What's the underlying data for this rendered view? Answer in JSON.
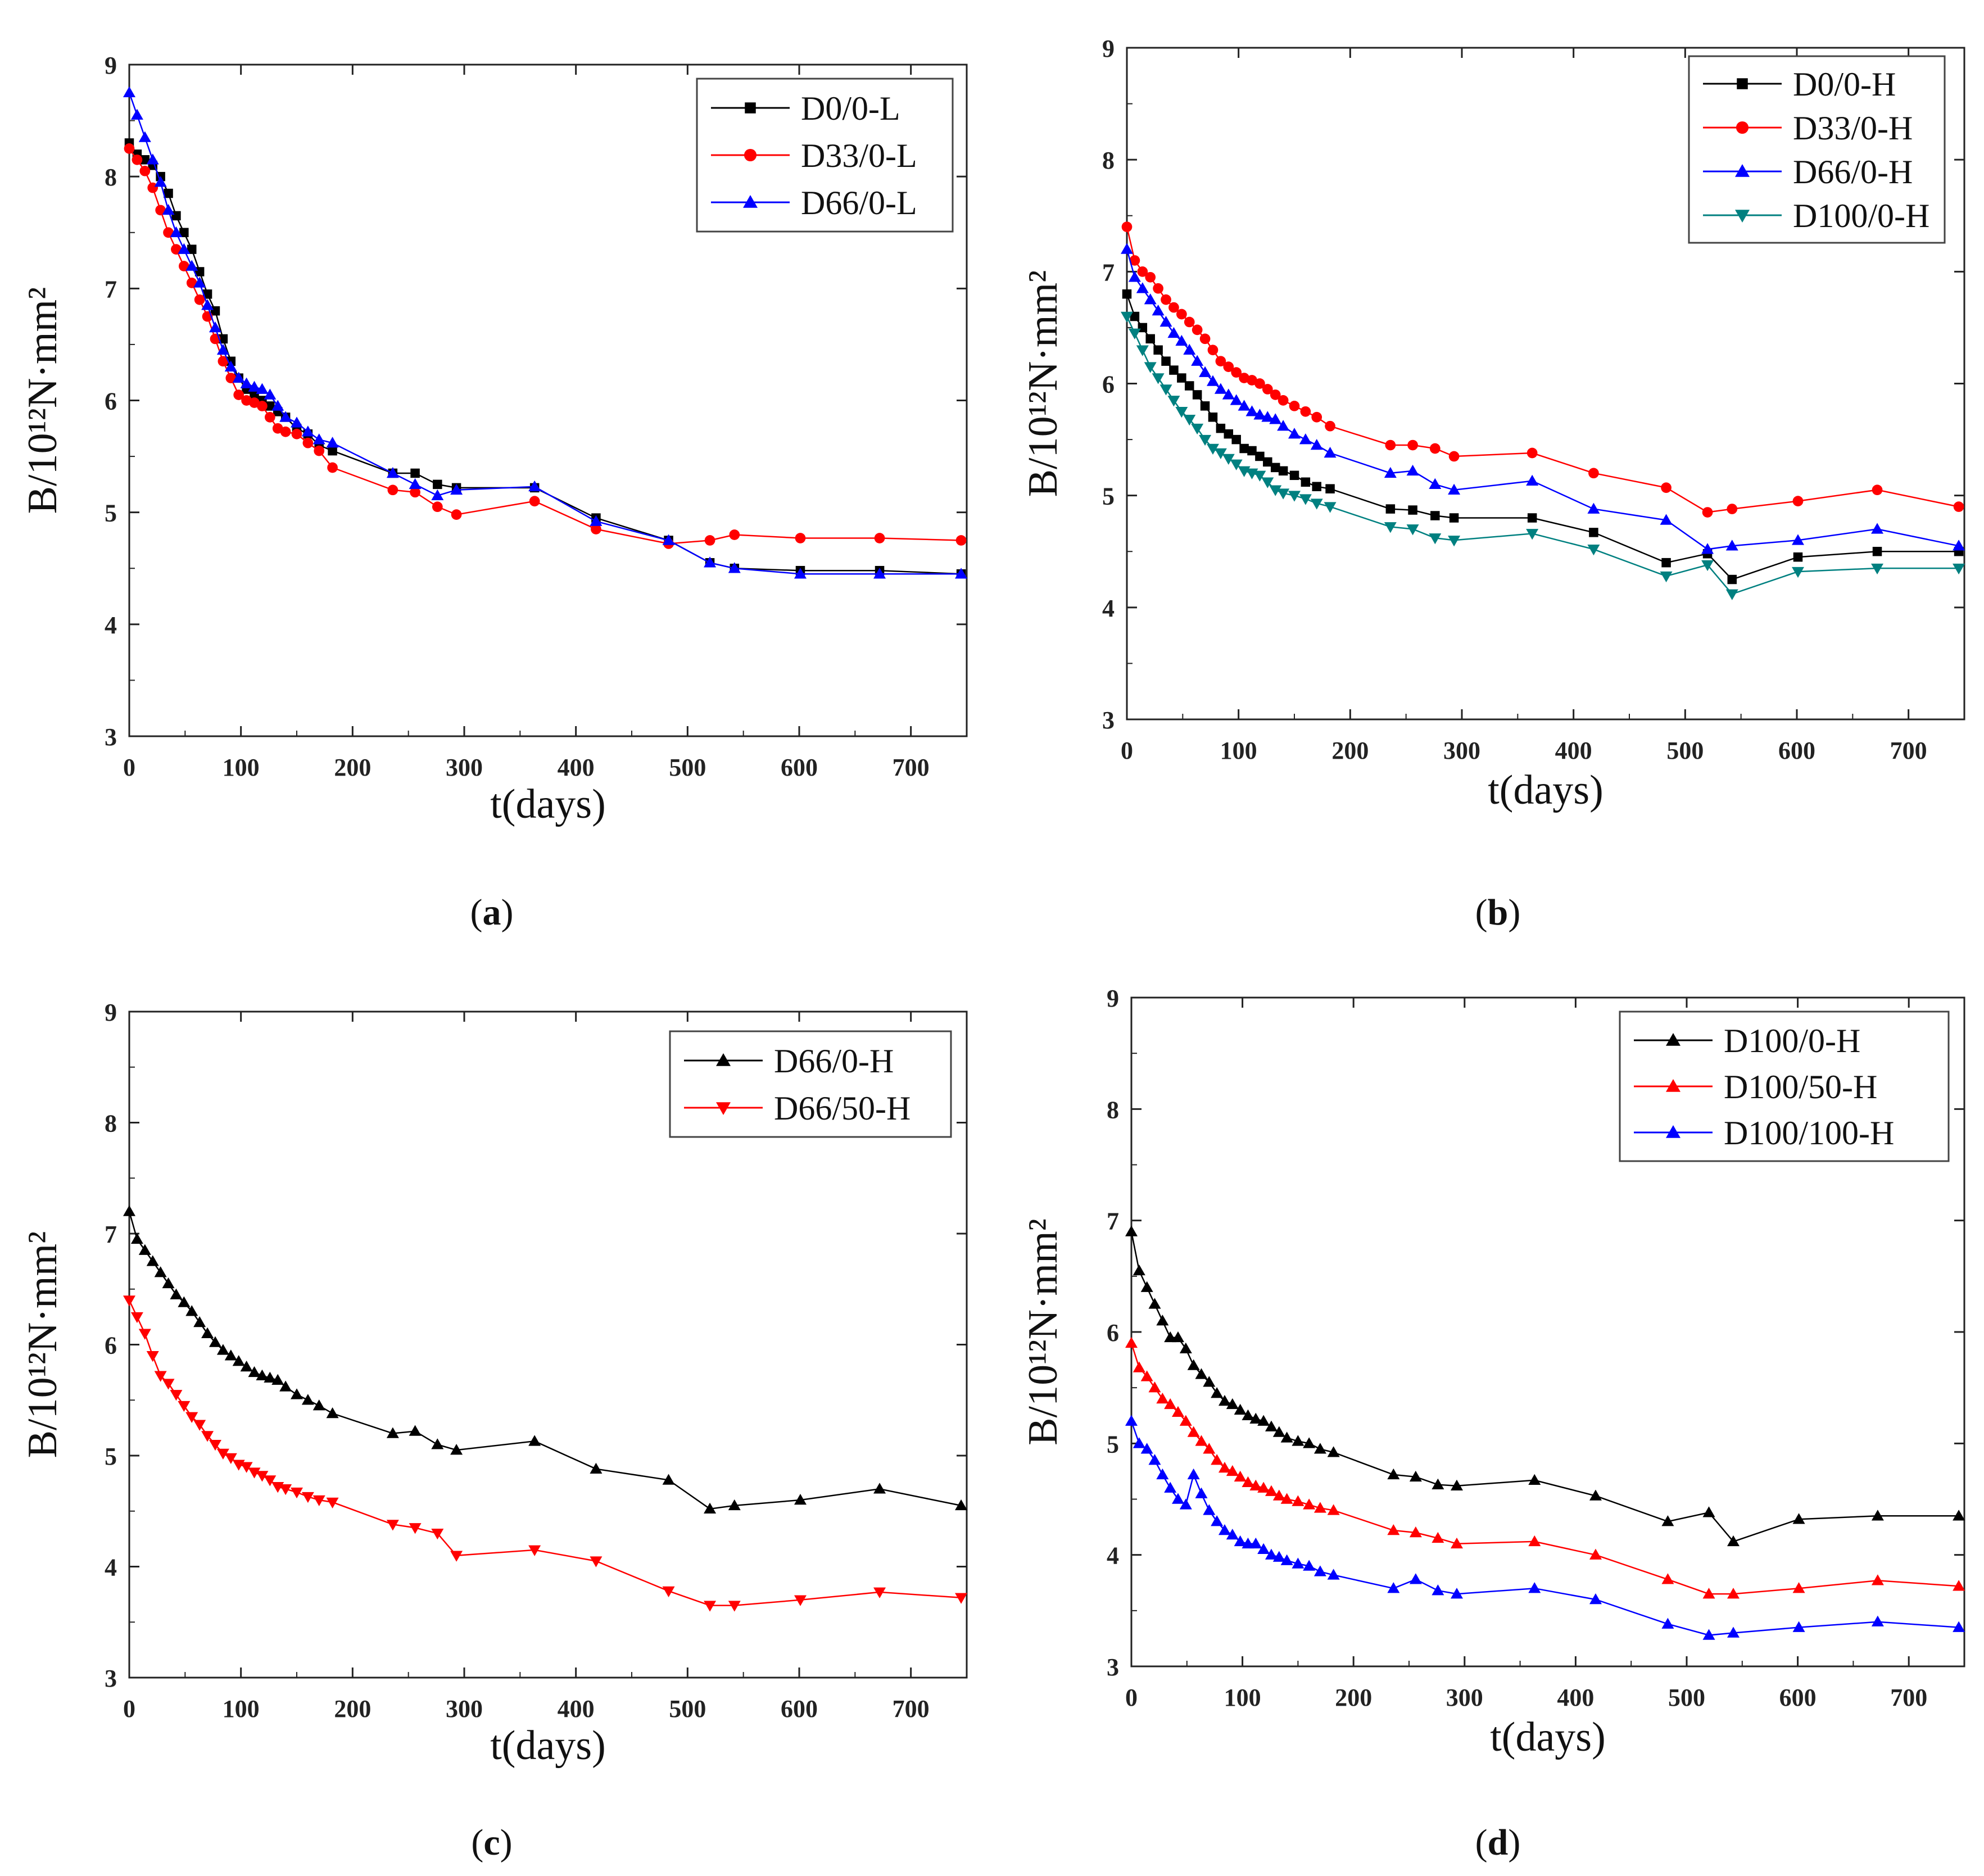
{
  "chart_data": [
    {
      "type": "line",
      "panel_label": "a",
      "xlabel": "t(days)",
      "ylabel": "B/10¹²N·mm²",
      "xlim": [
        0,
        750
      ],
      "ylim": [
        3,
        9
      ],
      "xticks": [
        0,
        100,
        200,
        300,
        400,
        500,
        600,
        700
      ],
      "yticks": [
        3,
        4,
        5,
        6,
        7,
        8,
        9
      ],
      "legend_position": "top-right",
      "series": [
        {
          "name": "D0/0-L",
          "color": "#000000",
          "marker": "square",
          "x": [
            0,
            7,
            14,
            21,
            28,
            35,
            42,
            49,
            56,
            63,
            70,
            77,
            84,
            91,
            98,
            105,
            112,
            119,
            126,
            133,
            140,
            150,
            160,
            170,
            182,
            236,
            256,
            276,
            293,
            363,
            418,
            483,
            520,
            542,
            601,
            672,
            745
          ],
          "y": [
            8.3,
            8.2,
            8.15,
            8.1,
            8.0,
            7.85,
            7.65,
            7.5,
            7.35,
            7.15,
            6.95,
            6.8,
            6.55,
            6.35,
            6.2,
            6.1,
            6.05,
            6.0,
            5.95,
            5.9,
            5.85,
            5.75,
            5.7,
            5.6,
            5.55,
            5.35,
            5.35,
            5.25,
            5.22,
            5.22,
            4.95,
            4.75,
            4.55,
            4.5,
            4.48,
            4.48,
            4.45
          ]
        },
        {
          "name": "D33/0-L",
          "color": "#ff0000",
          "marker": "circle",
          "x": [
            0,
            7,
            14,
            21,
            28,
            35,
            42,
            49,
            56,
            63,
            70,
            77,
            84,
            91,
            98,
            105,
            112,
            119,
            126,
            133,
            140,
            150,
            160,
            170,
            182,
            236,
            256,
            276,
            293,
            363,
            418,
            483,
            520,
            542,
            601,
            672,
            745
          ],
          "y": [
            8.25,
            8.15,
            8.05,
            7.9,
            7.7,
            7.5,
            7.35,
            7.2,
            7.05,
            6.9,
            6.75,
            6.55,
            6.35,
            6.2,
            6.05,
            6.0,
            5.98,
            5.95,
            5.85,
            5.75,
            5.72,
            5.7,
            5.62,
            5.55,
            5.4,
            5.2,
            5.18,
            5.05,
            4.98,
            5.1,
            4.85,
            4.72,
            4.75,
            4.8,
            4.77,
            4.77,
            4.75
          ]
        },
        {
          "name": "D66/0-L",
          "color": "#0000ff",
          "marker": "triangle-up",
          "x": [
            0,
            7,
            14,
            21,
            28,
            35,
            42,
            49,
            56,
            63,
            70,
            77,
            84,
            91,
            98,
            105,
            112,
            119,
            126,
            133,
            140,
            150,
            160,
            170,
            182,
            236,
            256,
            276,
            293,
            363,
            418,
            483,
            520,
            542,
            601,
            672,
            745
          ],
          "y": [
            8.75,
            8.55,
            8.35,
            8.15,
            7.95,
            7.7,
            7.5,
            7.35,
            7.2,
            7.05,
            6.85,
            6.65,
            6.45,
            6.3,
            6.2,
            6.15,
            6.12,
            6.1,
            6.05,
            5.95,
            5.85,
            5.8,
            5.72,
            5.65,
            5.62,
            5.35,
            5.25,
            5.15,
            5.2,
            5.23,
            4.92,
            4.75,
            4.55,
            4.5,
            4.45,
            4.45,
            4.45
          ]
        }
      ]
    },
    {
      "type": "line",
      "panel_label": "b",
      "xlabel": "t(days)",
      "ylabel": "B/10¹²N·mm²",
      "xlim": [
        0,
        750
      ],
      "ylim": [
        3,
        9
      ],
      "xticks": [
        0,
        100,
        200,
        300,
        400,
        500,
        600,
        700
      ],
      "yticks": [
        3,
        4,
        5,
        6,
        7,
        8,
        9
      ],
      "legend_position": "top-right",
      "series": [
        {
          "name": "D0/0-H",
          "color": "#000000",
          "marker": "square",
          "x": [
            0,
            7,
            14,
            21,
            28,
            35,
            42,
            49,
            56,
            63,
            70,
            77,
            84,
            91,
            98,
            105,
            112,
            119,
            126,
            133,
            140,
            150,
            160,
            170,
            182,
            236,
            256,
            276,
            293,
            363,
            418,
            483,
            520,
            542,
            601,
            672,
            745
          ],
          "y": [
            6.8,
            6.6,
            6.5,
            6.4,
            6.3,
            6.2,
            6.12,
            6.05,
            5.98,
            5.9,
            5.8,
            5.7,
            5.6,
            5.55,
            5.5,
            5.42,
            5.4,
            5.35,
            5.3,
            5.25,
            5.22,
            5.18,
            5.12,
            5.08,
            5.06,
            4.88,
            4.87,
            4.82,
            4.8,
            4.8,
            4.67,
            4.4,
            4.48,
            4.25,
            4.45,
            4.5,
            4.5
          ]
        },
        {
          "name": "D33/0-H",
          "color": "#ff0000",
          "marker": "circle",
          "x": [
            0,
            7,
            14,
            21,
            28,
            35,
            42,
            49,
            56,
            63,
            70,
            77,
            84,
            91,
            98,
            105,
            112,
            119,
            126,
            133,
            140,
            150,
            160,
            170,
            182,
            236,
            256,
            276,
            293,
            363,
            418,
            483,
            520,
            542,
            601,
            672,
            745
          ],
          "y": [
            7.4,
            7.1,
            7.0,
            6.95,
            6.85,
            6.75,
            6.68,
            6.62,
            6.55,
            6.48,
            6.4,
            6.3,
            6.2,
            6.15,
            6.1,
            6.05,
            6.03,
            6.0,
            5.95,
            5.9,
            5.85,
            5.8,
            5.75,
            5.7,
            5.62,
            5.45,
            5.45,
            5.42,
            5.35,
            5.38,
            5.2,
            5.07,
            4.85,
            4.88,
            4.95,
            5.05,
            4.9
          ]
        },
        {
          "name": "D66/0-H",
          "color": "#0000ff",
          "marker": "triangle-up",
          "x": [
            0,
            7,
            14,
            21,
            28,
            35,
            42,
            49,
            56,
            63,
            70,
            77,
            84,
            91,
            98,
            105,
            112,
            119,
            126,
            133,
            140,
            150,
            160,
            170,
            182,
            236,
            256,
            276,
            293,
            363,
            418,
            483,
            520,
            542,
            601,
            672,
            745
          ],
          "y": [
            7.2,
            6.95,
            6.85,
            6.75,
            6.65,
            6.55,
            6.45,
            6.38,
            6.3,
            6.2,
            6.1,
            6.02,
            5.95,
            5.9,
            5.85,
            5.8,
            5.75,
            5.72,
            5.7,
            5.68,
            5.62,
            5.55,
            5.5,
            5.45,
            5.38,
            5.2,
            5.22,
            5.1,
            5.05,
            5.13,
            4.88,
            4.78,
            4.52,
            4.55,
            4.6,
            4.7,
            4.55
          ]
        },
        {
          "name": "D100/0-H",
          "color": "#008080",
          "marker": "triangle-down",
          "x": [
            0,
            7,
            14,
            21,
            28,
            35,
            42,
            49,
            56,
            63,
            70,
            77,
            84,
            91,
            98,
            105,
            112,
            119,
            126,
            133,
            140,
            150,
            160,
            170,
            182,
            236,
            256,
            276,
            293,
            363,
            418,
            483,
            520,
            542,
            601,
            672,
            745
          ],
          "y": [
            6.6,
            6.45,
            6.3,
            6.15,
            6.05,
            5.95,
            5.85,
            5.75,
            5.68,
            5.6,
            5.5,
            5.42,
            5.38,
            5.33,
            5.28,
            5.22,
            5.2,
            5.18,
            5.12,
            5.05,
            5.02,
            5.0,
            4.97,
            4.93,
            4.9,
            4.72,
            4.7,
            4.62,
            4.6,
            4.66,
            4.52,
            4.28,
            4.38,
            4.12,
            4.32,
            4.35,
            4.35
          ]
        }
      ]
    },
    {
      "type": "line",
      "panel_label": "c",
      "xlabel": "t(days)",
      "ylabel": "B/10¹²N·mm²",
      "xlim": [
        0,
        750
      ],
      "ylim": [
        3,
        9
      ],
      "xticks": [
        0,
        100,
        200,
        300,
        400,
        500,
        600,
        700
      ],
      "yticks": [
        3,
        4,
        5,
        6,
        7,
        8,
        9
      ],
      "legend_position": "top-right",
      "series": [
        {
          "name": "D66/0-H",
          "color": "#000000",
          "marker": "triangle-up",
          "x": [
            0,
            7,
            14,
            21,
            28,
            35,
            42,
            49,
            56,
            63,
            70,
            77,
            84,
            91,
            98,
            105,
            112,
            119,
            126,
            133,
            140,
            150,
            160,
            170,
            182,
            236,
            256,
            276,
            293,
            363,
            418,
            483,
            520,
            542,
            601,
            672,
            745
          ],
          "y": [
            7.2,
            6.95,
            6.85,
            6.75,
            6.65,
            6.55,
            6.45,
            6.38,
            6.3,
            6.2,
            6.1,
            6.02,
            5.95,
            5.9,
            5.85,
            5.8,
            5.75,
            5.72,
            5.7,
            5.68,
            5.62,
            5.55,
            5.5,
            5.45,
            5.38,
            5.2,
            5.22,
            5.1,
            5.05,
            5.13,
            4.88,
            4.78,
            4.52,
            4.55,
            4.6,
            4.7,
            4.55
          ]
        },
        {
          "name": "D66/50-H",
          "color": "#ff0000",
          "marker": "triangle-down",
          "x": [
            0,
            7,
            14,
            21,
            28,
            35,
            42,
            49,
            56,
            63,
            70,
            77,
            84,
            91,
            98,
            105,
            112,
            119,
            126,
            133,
            140,
            150,
            160,
            170,
            182,
            236,
            256,
            276,
            293,
            363,
            418,
            483,
            520,
            542,
            601,
            672,
            745
          ],
          "y": [
            6.4,
            6.25,
            6.1,
            5.9,
            5.72,
            5.65,
            5.55,
            5.45,
            5.35,
            5.28,
            5.18,
            5.1,
            5.02,
            4.98,
            4.92,
            4.9,
            4.85,
            4.82,
            4.78,
            4.72,
            4.7,
            4.67,
            4.63,
            4.6,
            4.58,
            4.38,
            4.35,
            4.3,
            4.1,
            4.15,
            4.05,
            3.78,
            3.65,
            3.65,
            3.7,
            3.77,
            3.72
          ]
        }
      ]
    },
    {
      "type": "line",
      "panel_label": "d",
      "xlabel": "t(days)",
      "ylabel": "B/10¹²N·mm²",
      "xlim": [
        0,
        750
      ],
      "ylim": [
        3,
        9
      ],
      "xticks": [
        0,
        100,
        200,
        300,
        400,
        500,
        600,
        700
      ],
      "yticks": [
        3,
        4,
        5,
        6,
        7,
        8,
        9
      ],
      "legend_position": "top-right",
      "series": [
        {
          "name": "D100/0-H",
          "color": "#000000",
          "marker": "triangle-up",
          "x": [
            0,
            7,
            14,
            21,
            28,
            35,
            42,
            49,
            56,
            63,
            70,
            77,
            84,
            91,
            98,
            105,
            112,
            119,
            126,
            133,
            140,
            150,
            160,
            170,
            182,
            236,
            256,
            276,
            293,
            363,
            418,
            483,
            520,
            542,
            601,
            672,
            745
          ],
          "y": [
            6.9,
            6.55,
            6.4,
            6.25,
            6.1,
            5.95,
            5.95,
            5.85,
            5.7,
            5.62,
            5.55,
            5.45,
            5.38,
            5.35,
            5.3,
            5.25,
            5.22,
            5.2,
            5.15,
            5.1,
            5.05,
            5.02,
            5.0,
            4.95,
            4.92,
            4.72,
            4.7,
            4.63,
            4.62,
            4.67,
            4.53,
            4.3,
            4.38,
            4.12,
            4.32,
            4.35,
            4.35
          ]
        },
        {
          "name": "D100/50-H",
          "color": "#ff0000",
          "marker": "triangle-up",
          "x": [
            0,
            7,
            14,
            21,
            28,
            35,
            42,
            49,
            56,
            63,
            70,
            77,
            84,
            91,
            98,
            105,
            112,
            119,
            126,
            133,
            140,
            150,
            160,
            170,
            182,
            236,
            256,
            276,
            293,
            363,
            418,
            483,
            520,
            542,
            601,
            672,
            745
          ],
          "y": [
            5.9,
            5.68,
            5.6,
            5.5,
            5.4,
            5.35,
            5.28,
            5.2,
            5.1,
            5.02,
            4.95,
            4.85,
            4.78,
            4.75,
            4.7,
            4.65,
            4.62,
            4.6,
            4.57,
            4.53,
            4.5,
            4.48,
            4.45,
            4.42,
            4.4,
            4.22,
            4.2,
            4.15,
            4.1,
            4.12,
            4.0,
            3.78,
            3.65,
            3.65,
            3.7,
            3.77,
            3.72
          ]
        },
        {
          "name": "D100/100-H",
          "color": "#0000ff",
          "marker": "triangle-up",
          "x": [
            0,
            7,
            14,
            21,
            28,
            35,
            42,
            49,
            56,
            63,
            70,
            77,
            84,
            91,
            98,
            105,
            112,
            119,
            126,
            133,
            140,
            150,
            160,
            170,
            182,
            236,
            256,
            276,
            293,
            363,
            418,
            483,
            520,
            542,
            601,
            672,
            745
          ],
          "y": [
            5.2,
            5.0,
            4.95,
            4.85,
            4.72,
            4.6,
            4.5,
            4.45,
            4.72,
            4.55,
            4.4,
            4.3,
            4.22,
            4.18,
            4.12,
            4.1,
            4.1,
            4.05,
            4.0,
            3.98,
            3.95,
            3.92,
            3.9,
            3.85,
            3.82,
            3.7,
            3.78,
            3.68,
            3.65,
            3.7,
            3.6,
            3.38,
            3.28,
            3.3,
            3.35,
            3.4,
            3.35
          ]
        }
      ]
    }
  ]
}
